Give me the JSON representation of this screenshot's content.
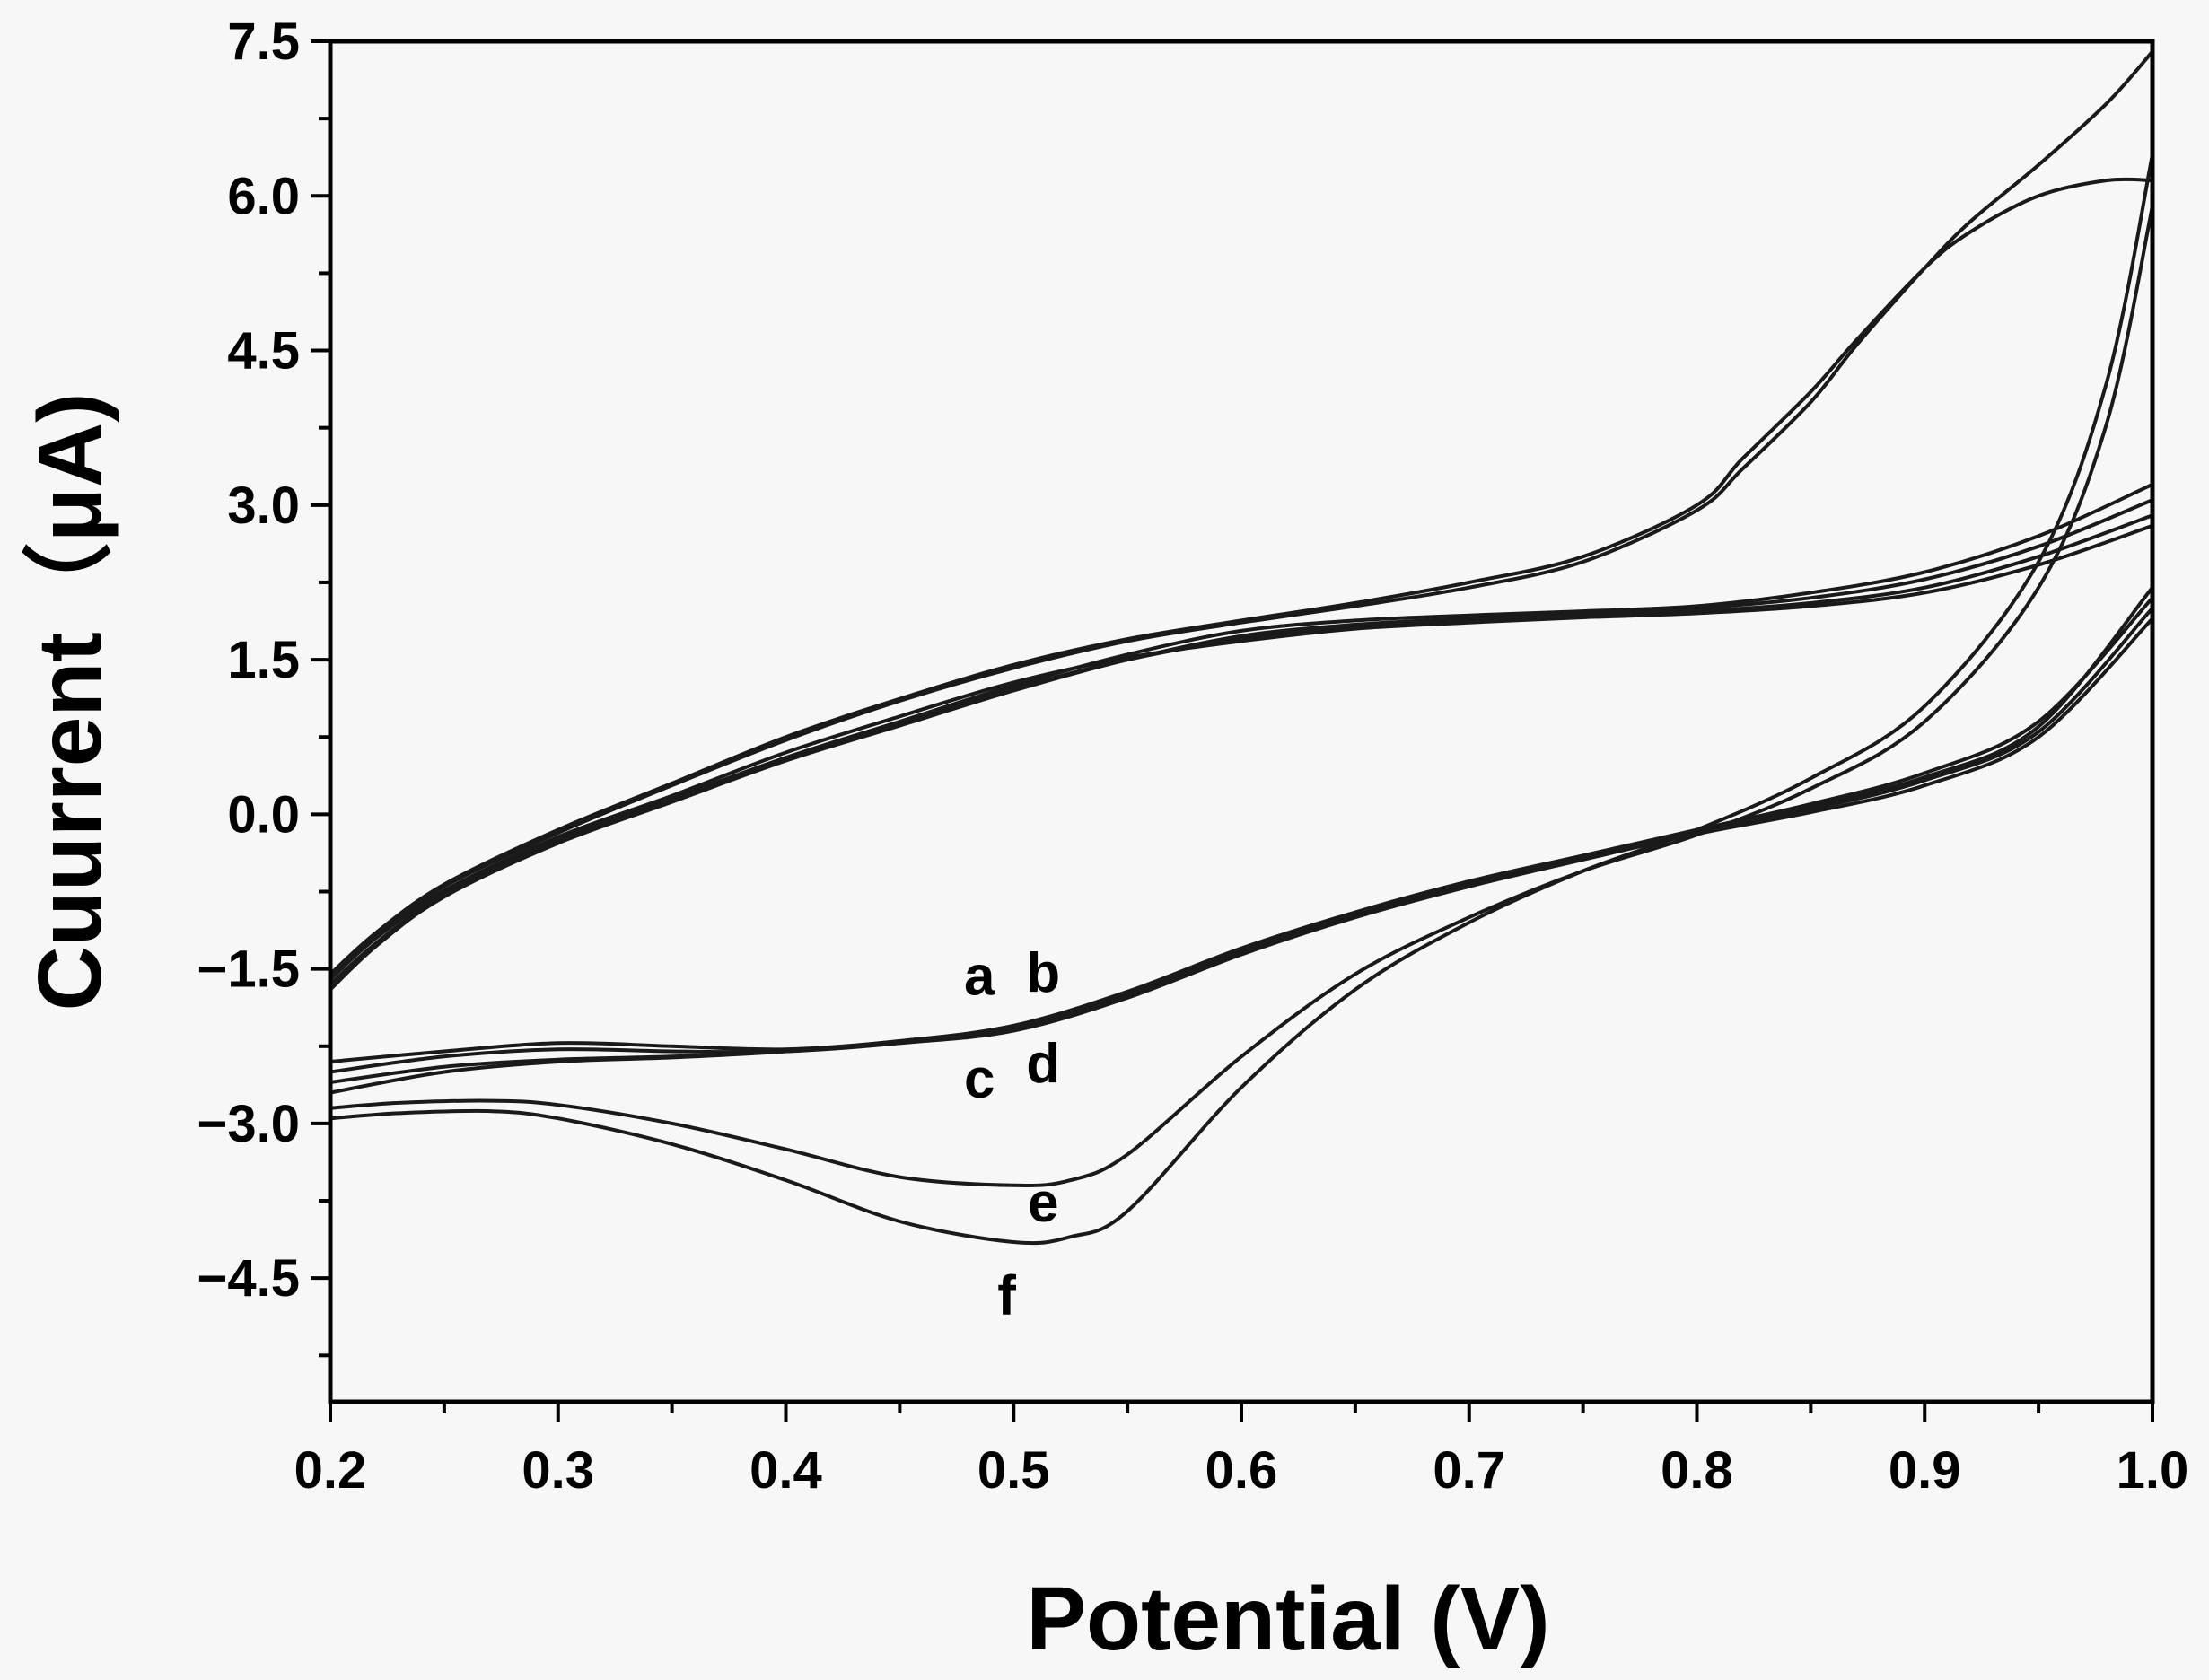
{
  "chart_data": {
    "type": "line",
    "title": "",
    "xlabel": "Potential (V)",
    "ylabel": "Cuurrent（μA)",
    "xlim": [
      0.2,
      1.0
    ],
    "ylim": [
      -5.7,
      7.5
    ],
    "xticks": [
      "0.2",
      "0.3",
      "0.4",
      "0.5",
      "0.6",
      "0.7",
      "0.8",
      "0.9",
      "1.0"
    ],
    "yticks": [
      {
        "value": 7.5,
        "label": "7.5"
      },
      {
        "value": 6.0,
        "label": "6.0"
      },
      {
        "value": 4.5,
        "label": "4.5"
      },
      {
        "value": 3.0,
        "label": "3.0"
      },
      {
        "value": 1.5,
        "label": "1.5"
      },
      {
        "value": 0.0,
        "label": "0.0"
      },
      {
        "value": -1.5,
        "label": "−1.5"
      },
      {
        "value": -3.0,
        "label": "−3.0"
      },
      {
        "value": -4.5,
        "label": "−4.5"
      }
    ],
    "grid": false,
    "legend": "none",
    "annotations": [
      {
        "text": "a",
        "x": 0.485,
        "y": -1.75
      },
      {
        "text": "b",
        "x": 0.513,
        "y": -1.72
      },
      {
        "text": "c",
        "x": 0.485,
        "y": -2.75
      },
      {
        "text": "d",
        "x": 0.513,
        "y": -2.6
      },
      {
        "text": "e",
        "x": 0.513,
        "y": -3.95
      },
      {
        "text": "f",
        "x": 0.497,
        "y": -4.85
      }
    ],
    "series": [
      {
        "name": "a",
        "forward": {
          "x": [
            0.2,
            0.25,
            0.3,
            0.35,
            0.4,
            0.45,
            0.5,
            0.55,
            0.6,
            0.65,
            0.7,
            0.75,
            0.8,
            0.85,
            0.9,
            0.95,
            1.0
          ],
          "y": [
            -2.4,
            -2.3,
            -2.22,
            -2.25,
            -2.28,
            -2.2,
            -2.05,
            -1.72,
            -1.3,
            -0.95,
            -0.65,
            -0.4,
            -0.15,
            0.1,
            0.4,
            0.9,
            2.1
          ]
        },
        "reverse": {
          "x": [
            1.0,
            0.95,
            0.9,
            0.85,
            0.8,
            0.75,
            0.7,
            0.65,
            0.6,
            0.55,
            0.5,
            0.45,
            0.4,
            0.35,
            0.3,
            0.25,
            0.22,
            0.2
          ],
          "y": [
            3.2,
            2.7,
            2.35,
            2.15,
            2.02,
            1.97,
            1.93,
            1.88,
            1.78,
            1.55,
            1.25,
            0.9,
            0.55,
            0.15,
            -0.25,
            -0.75,
            -1.2,
            -1.6
          ]
        }
      },
      {
        "name": "b",
        "forward": {
          "x": [
            0.2,
            0.25,
            0.3,
            0.35,
            0.4,
            0.45,
            0.5,
            0.55,
            0.6,
            0.65,
            0.7,
            0.75,
            0.8,
            0.85,
            0.9,
            0.95,
            1.0
          ],
          "y": [
            -2.5,
            -2.35,
            -2.28,
            -2.3,
            -2.3,
            -2.22,
            -2.08,
            -1.75,
            -1.33,
            -0.98,
            -0.68,
            -0.42,
            -0.17,
            0.05,
            0.33,
            0.8,
            2.0
          ]
        },
        "reverse": {
          "x": [
            1.0,
            0.95,
            0.9,
            0.85,
            0.8,
            0.75,
            0.7,
            0.65,
            0.6,
            0.55,
            0.5,
            0.45,
            0.4,
            0.35,
            0.3,
            0.25,
            0.22,
            0.2
          ],
          "y": [
            3.05,
            2.6,
            2.28,
            2.1,
            2.0,
            1.95,
            1.9,
            1.84,
            1.73,
            1.5,
            1.2,
            0.86,
            0.52,
            0.12,
            -0.28,
            -0.8,
            -1.28,
            -1.7
          ]
        }
      },
      {
        "name": "c",
        "forward": {
          "x": [
            0.2,
            0.25,
            0.3,
            0.35,
            0.4,
            0.45,
            0.5,
            0.55,
            0.6,
            0.65,
            0.7,
            0.75,
            0.8,
            0.85,
            0.9,
            0.95,
            1.0
          ],
          "y": [
            -2.6,
            -2.45,
            -2.38,
            -2.35,
            -2.3,
            -2.22,
            -2.1,
            -1.78,
            -1.36,
            -1.0,
            -0.7,
            -0.44,
            -0.19,
            0.02,
            0.28,
            0.75,
            1.9
          ]
        },
        "reverse": {
          "x": [
            1.0,
            0.95,
            0.9,
            0.85,
            0.8,
            0.75,
            0.7,
            0.65,
            0.6,
            0.55,
            0.5,
            0.45,
            0.4,
            0.35,
            0.3,
            0.25,
            0.22,
            0.2
          ],
          "y": [
            2.9,
            2.5,
            2.2,
            2.05,
            1.97,
            1.93,
            1.88,
            1.82,
            1.7,
            1.5,
            1.22,
            0.88,
            0.53,
            0.14,
            -0.26,
            -0.78,
            -1.25,
            -1.65
          ]
        }
      },
      {
        "name": "d",
        "forward": {
          "x": [
            0.2,
            0.25,
            0.3,
            0.35,
            0.4,
            0.45,
            0.5,
            0.55,
            0.6,
            0.65,
            0.7,
            0.75,
            0.8,
            0.85,
            0.9,
            0.95,
            1.0
          ],
          "y": [
            -2.7,
            -2.5,
            -2.4,
            -2.36,
            -2.3,
            -2.2,
            -2.06,
            -1.74,
            -1.32,
            -0.96,
            -0.66,
            -0.41,
            -0.16,
            0.08,
            0.36,
            0.85,
            2.2
          ]
        },
        "reverse": {
          "x": [
            1.0,
            0.95,
            0.9,
            0.85,
            0.8,
            0.75,
            0.7,
            0.65,
            0.6,
            0.55,
            0.5,
            0.45,
            0.4,
            0.35,
            0.3,
            0.25,
            0.22,
            0.2
          ],
          "y": [
            2.8,
            2.42,
            2.15,
            2.02,
            1.95,
            1.91,
            1.86,
            1.8,
            1.68,
            1.52,
            1.28,
            0.95,
            0.6,
            0.18,
            -0.22,
            -0.74,
            -1.2,
            -1.6
          ]
        }
      },
      {
        "name": "e",
        "forward": {
          "x": [
            0.2,
            0.23,
            0.27,
            0.3,
            0.35,
            0.4,
            0.45,
            0.5,
            0.525,
            0.55,
            0.6,
            0.65,
            0.7,
            0.75,
            0.8,
            0.85,
            0.9,
            0.95,
            0.98,
            1.0
          ],
          "y": [
            -2.85,
            -2.8,
            -2.78,
            -2.82,
            -3.0,
            -3.25,
            -3.52,
            -3.6,
            -3.55,
            -3.3,
            -2.35,
            -1.55,
            -1.0,
            -0.55,
            -0.2,
            0.25,
            0.9,
            2.2,
            3.8,
            5.9
          ]
        },
        "reverse": {
          "x": [
            1.0,
            0.98,
            0.95,
            0.92,
            0.9,
            0.87,
            0.85,
            0.82,
            0.8,
            0.75,
            0.7,
            0.65,
            0.6,
            0.55,
            0.5,
            0.45,
            0.4,
            0.35,
            0.3,
            0.25,
            0.22,
            0.2
          ],
          "y": [
            6.15,
            6.15,
            6.0,
            5.65,
            5.3,
            4.6,
            4.1,
            3.45,
            3.0,
            2.5,
            2.25,
            2.05,
            1.88,
            1.7,
            1.45,
            1.12,
            0.75,
            0.3,
            -0.15,
            -0.68,
            -1.15,
            -1.55
          ]
        }
      },
      {
        "name": "f",
        "forward": {
          "x": [
            0.2,
            0.23,
            0.27,
            0.3,
            0.35,
            0.4,
            0.45,
            0.5,
            0.525,
            0.55,
            0.6,
            0.65,
            0.7,
            0.75,
            0.8,
            0.85,
            0.9,
            0.95,
            0.98,
            1.0
          ],
          "y": [
            -2.95,
            -2.9,
            -2.88,
            -2.95,
            -3.2,
            -3.55,
            -3.95,
            -4.15,
            -4.1,
            -3.85,
            -2.65,
            -1.7,
            -1.05,
            -0.55,
            -0.15,
            0.35,
            1.05,
            2.45,
            4.2,
            6.4
          ]
        },
        "reverse": {
          "x": [
            1.0,
            0.98,
            0.95,
            0.92,
            0.9,
            0.87,
            0.85,
            0.82,
            0.8,
            0.75,
            0.7,
            0.65,
            0.6,
            0.55,
            0.5,
            0.45,
            0.4,
            0.35,
            0.3,
            0.25,
            0.22,
            0.2
          ],
          "y": [
            7.4,
            6.9,
            6.3,
            5.75,
            5.3,
            4.55,
            4.0,
            3.35,
            2.95,
            2.45,
            2.2,
            2.02,
            1.86,
            1.68,
            1.42,
            1.1,
            0.72,
            0.28,
            -0.18,
            -0.7,
            -1.18,
            -1.6
          ]
        }
      }
    ]
  }
}
